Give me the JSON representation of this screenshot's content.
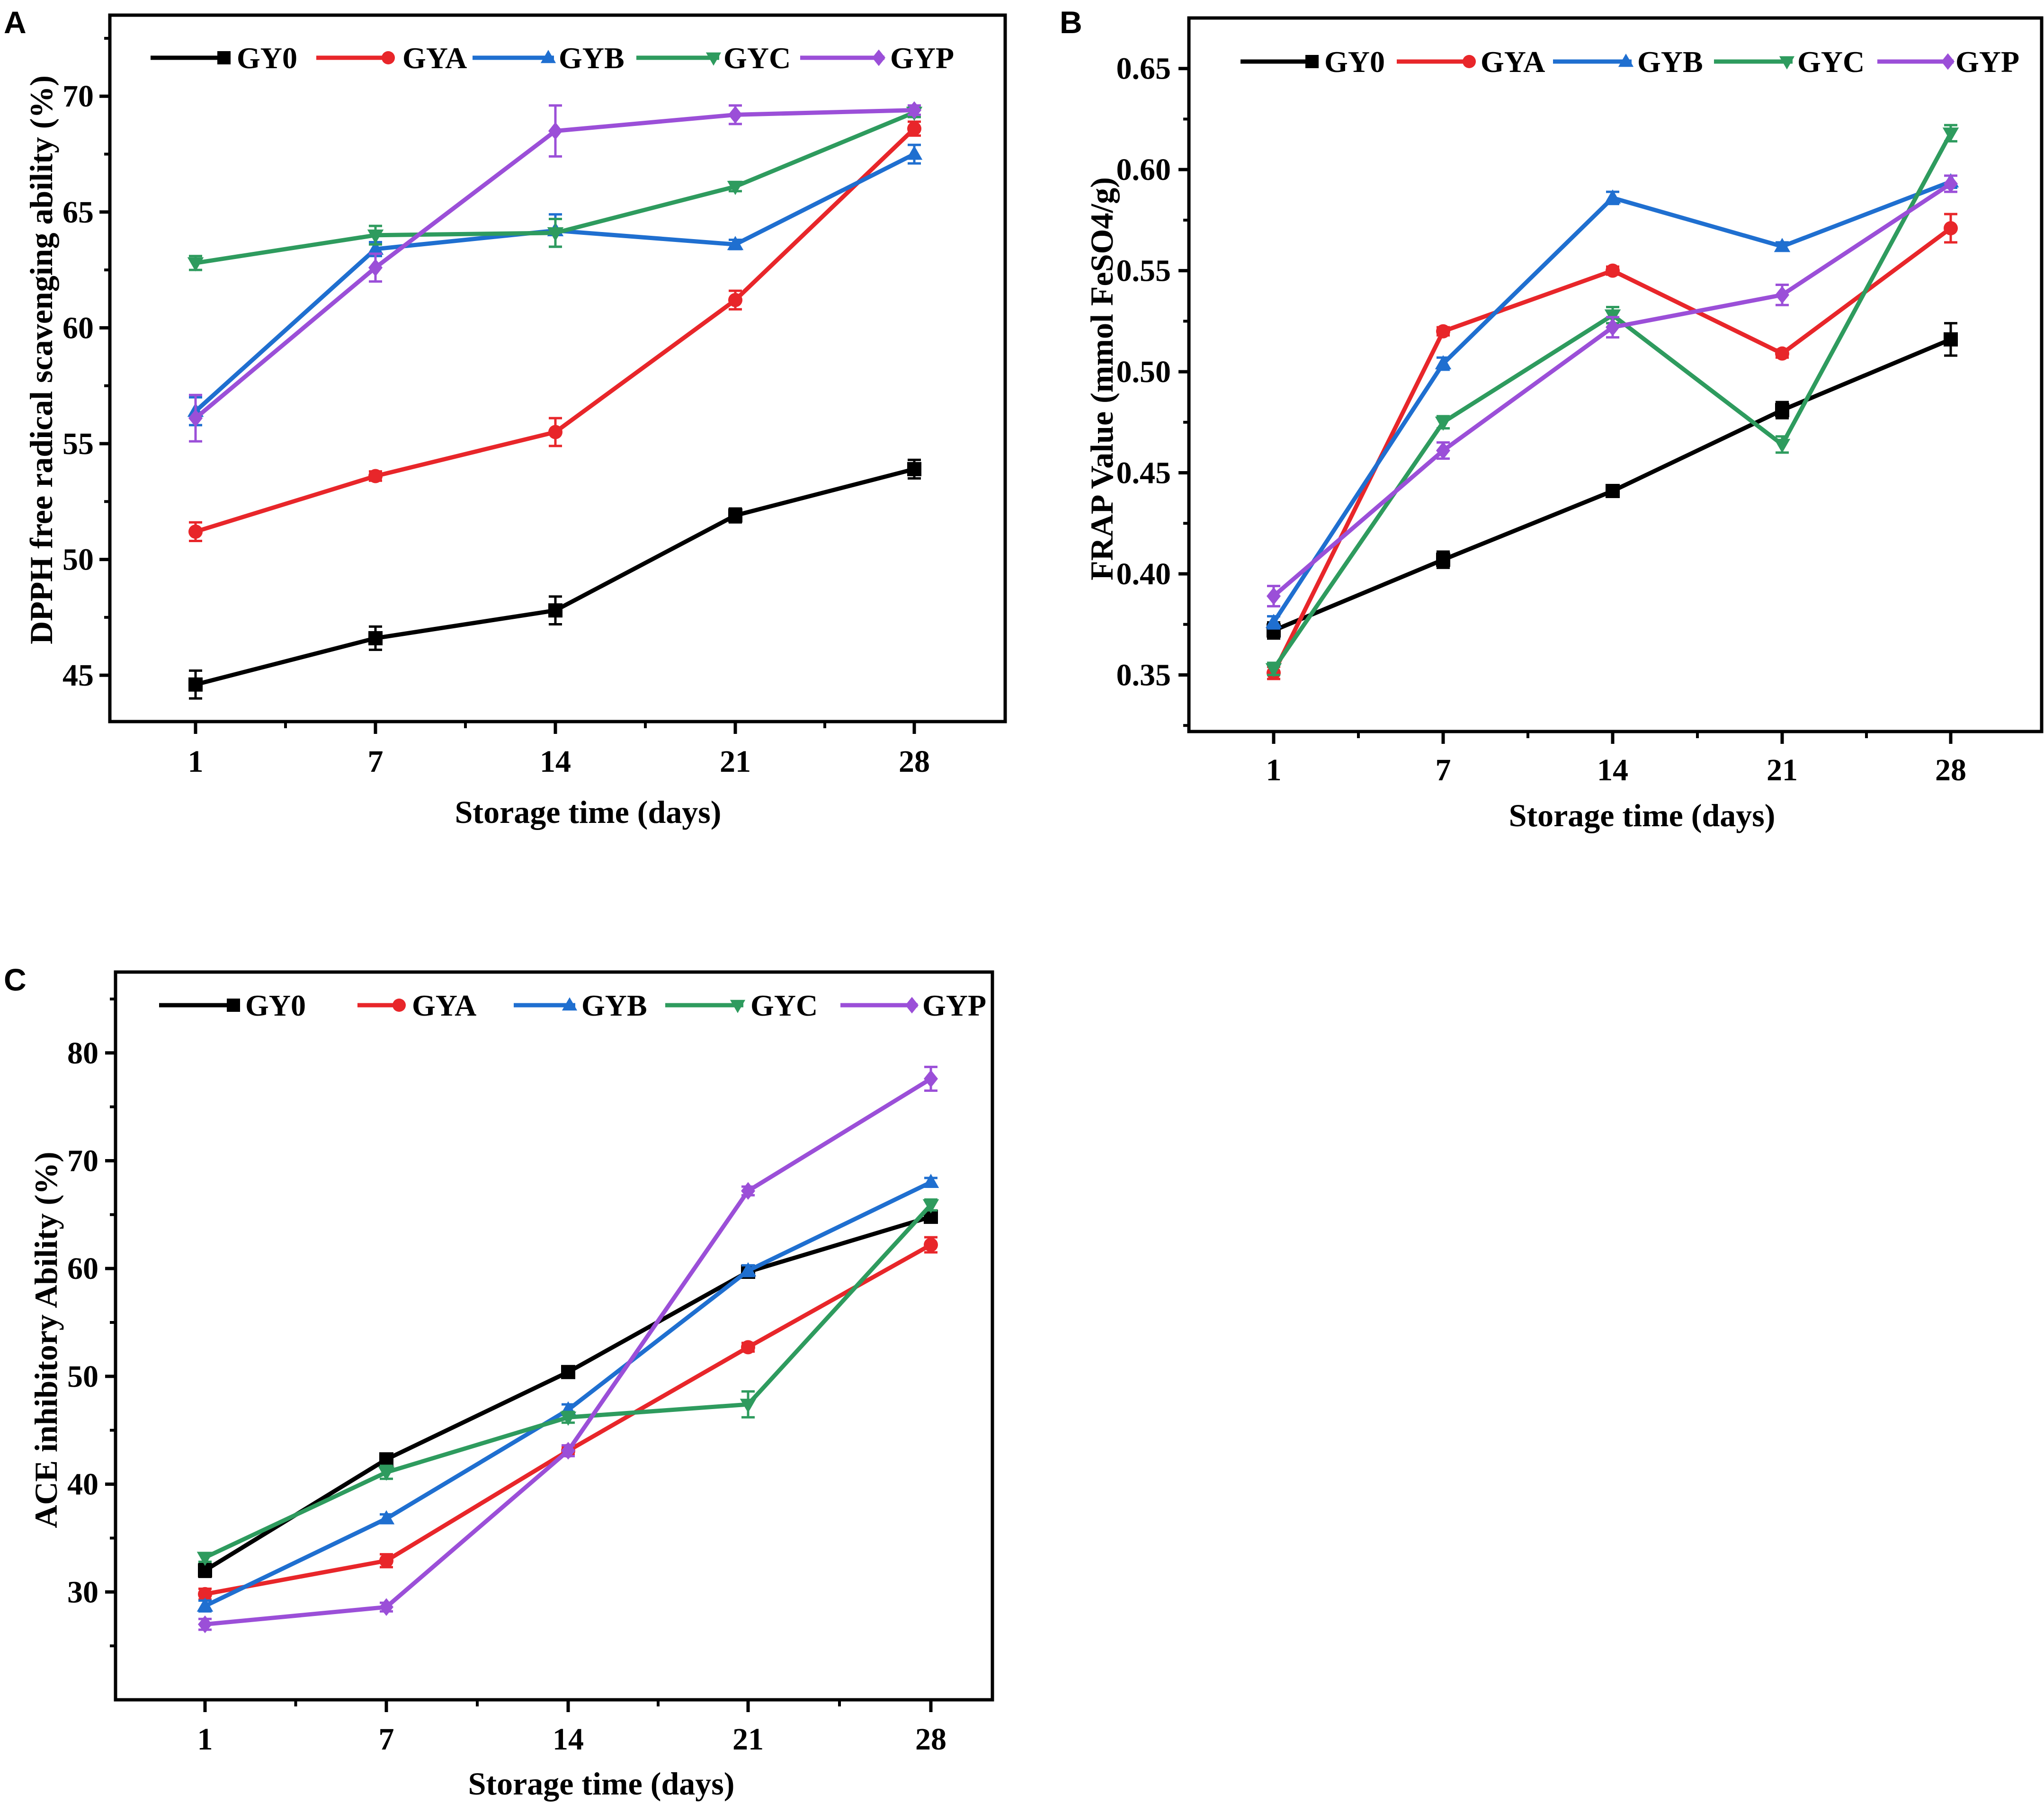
{
  "chart_data": [
    {
      "type": "line",
      "panel_label": "A",
      "title": "",
      "xlabel": "Storage time (days)",
      "ylabel": "DPPH free radical scavenging ability (%)",
      "categories": [
        "1",
        "7",
        "14",
        "21",
        "28"
      ],
      "y_ticks": [
        "45",
        "50",
        "55",
        "60",
        "65",
        "70"
      ],
      "ylim": [
        43,
        73.5
      ],
      "legend_position": "top",
      "series": [
        {
          "name": "GY0",
          "color": "#000000",
          "marker": "square",
          "values": [
            44.6,
            46.6,
            47.8,
            51.9,
            53.9
          ],
          "errors": [
            0.6,
            0.5,
            0.6,
            0.3,
            0.4
          ]
        },
        {
          "name": "GYA",
          "color": "#e8262a",
          "marker": "circle",
          "values": [
            51.2,
            53.6,
            55.5,
            61.2,
            68.6
          ],
          "errors": [
            0.4,
            0.2,
            0.6,
            0.4,
            0.3
          ]
        },
        {
          "name": "GYB",
          "color": "#1f6fd0",
          "marker": "triangle-up",
          "values": [
            56.4,
            63.4,
            64.2,
            63.6,
            67.5
          ],
          "errors": [
            0.6,
            0.3,
            0.7,
            0.2,
            0.4
          ]
        },
        {
          "name": "GYC",
          "color": "#2e9b5e",
          "marker": "triangle-down",
          "values": [
            62.8,
            64.0,
            64.1,
            66.1,
            69.3
          ],
          "errors": [
            0.3,
            0.4,
            0.6,
            0.2,
            0.2
          ]
        },
        {
          "name": "GYP",
          "color": "#9b4fd8",
          "marker": "diamond",
          "values": [
            56.1,
            62.6,
            68.5,
            69.2,
            69.4
          ],
          "errors": [
            1.0,
            0.6,
            1.1,
            0.4,
            0.2
          ]
        }
      ]
    },
    {
      "type": "line",
      "panel_label": "B",
      "title": "",
      "xlabel": "Storage time (days)",
      "ylabel": "FRAP Value (mmol FeSO4/g)",
      "categories": [
        "1",
        "7",
        "14",
        "21",
        "28"
      ],
      "y_ticks": [
        "0.35",
        "0.40",
        "0.45",
        "0.50",
        "0.55",
        "0.60",
        "0.65"
      ],
      "ylim": [
        0.322,
        0.675
      ],
      "legend_position": "top",
      "series": [
        {
          "name": "GY0",
          "color": "#000000",
          "marker": "square",
          "values": [
            0.372,
            0.407,
            0.441,
            0.481,
            0.516
          ],
          "errors": [
            0.004,
            0.004,
            0.002,
            0.004,
            0.008
          ]
        },
        {
          "name": "GYA",
          "color": "#e8262a",
          "marker": "circle",
          "values": [
            0.351,
            0.52,
            0.55,
            0.509,
            0.571
          ],
          "errors": [
            0.003,
            0.002,
            0.002,
            0.002,
            0.007
          ]
        },
        {
          "name": "GYB",
          "color": "#1f6fd0",
          "marker": "triangle-up",
          "values": [
            0.376,
            0.504,
            0.586,
            0.562,
            0.594
          ],
          "errors": [
            0.003,
            0.003,
            0.003,
            0.002,
            0.003
          ]
        },
        {
          "name": "GYC",
          "color": "#2e9b5e",
          "marker": "triangle-down",
          "values": [
            0.353,
            0.475,
            0.528,
            0.464,
            0.618
          ],
          "errors": [
            0.003,
            0.003,
            0.004,
            0.004,
            0.004
          ]
        },
        {
          "name": "GYP",
          "color": "#9b4fd8",
          "marker": "diamond",
          "values": [
            0.389,
            0.461,
            0.522,
            0.538,
            0.593
          ],
          "errors": [
            0.005,
            0.004,
            0.005,
            0.005,
            0.004
          ]
        }
      ]
    },
    {
      "type": "line",
      "panel_label": "C",
      "title": "",
      "xlabel": "Storage time (days)",
      "ylabel": "ACE inhibitory Ability (%)",
      "categories": [
        "1",
        "7",
        "14",
        "21",
        "28"
      ],
      "y_ticks": [
        "30",
        "40",
        "50",
        "60",
        "70",
        "80"
      ],
      "ylim": [
        20,
        87.5
      ],
      "legend_position": "top",
      "series": [
        {
          "name": "GY0",
          "color": "#000000",
          "marker": "square",
          "values": [
            32.0,
            42.3,
            50.4,
            59.7,
            64.8
          ],
          "errors": [
            0.6,
            0.4,
            0.4,
            0.5,
            0.5
          ]
        },
        {
          "name": "GYA",
          "color": "#e8262a",
          "marker": "circle",
          "values": [
            29.8,
            32.9,
            43.1,
            52.7,
            62.2
          ],
          "errors": [
            0.5,
            0.6,
            0.4,
            0.4,
            0.7
          ]
        },
        {
          "name": "GYB",
          "color": "#1f6fd0",
          "marker": "triangle-up",
          "values": [
            28.7,
            36.8,
            46.9,
            59.8,
            68.0
          ],
          "errors": [
            0.5,
            0.4,
            0.5,
            0.5,
            0.4
          ]
        },
        {
          "name": "GYC",
          "color": "#2e9b5e",
          "marker": "triangle-down",
          "values": [
            33.2,
            41.1,
            46.2,
            47.4,
            65.9
          ],
          "errors": [
            0.4,
            0.6,
            0.5,
            1.2,
            0.5
          ]
        },
        {
          "name": "GYP",
          "color": "#9b4fd8",
          "marker": "diamond",
          "values": [
            27.0,
            28.6,
            43.1,
            67.2,
            77.6
          ],
          "errors": [
            0.5,
            0.4,
            0.5,
            0.4,
            1.1
          ]
        }
      ]
    }
  ]
}
